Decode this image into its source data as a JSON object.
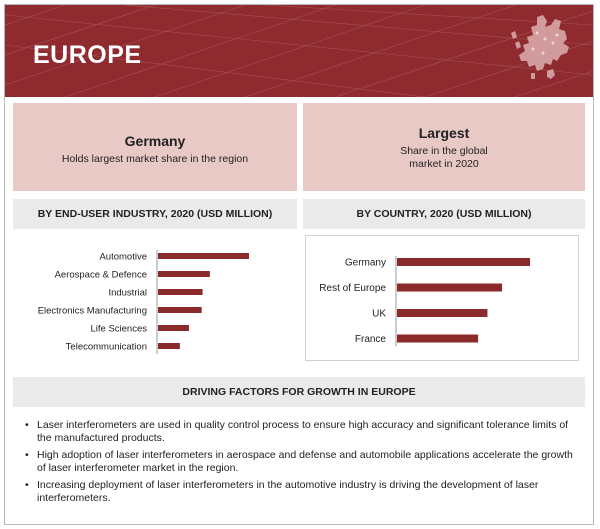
{
  "header": {
    "title": "EUROPE"
  },
  "highlights": [
    {
      "title": "Germany",
      "subtitle": "Holds largest market share in the region"
    },
    {
      "title": "Largest",
      "subtitle": "Share in the global market in 2020"
    }
  ],
  "sections": {
    "left_heading": "BY END-USER INDUSTRY, 2020 (USD MILLION)",
    "right_heading": "BY COUNTRY, 2020 (USD MILLION)",
    "drivers_heading": "DRIVING FACTORS FOR GROWTH IN EUROPE"
  },
  "drivers": [
    "Laser interferometers are used in quality control process to ensure high accuracy and significant tolerance limits of the manufactured products.",
    "High adoption of laser interferometers in aerospace and defense and automobile applications accelerate the growth of laser interferometer market in the region.",
    "Increasing deployment of laser interferometers in the automotive industry is driving the development of laser interferometers."
  ],
  "colors": {
    "brand": "#8f2a2f",
    "bar": "#8a2a2a",
    "card": "#e8c9c6",
    "band": "#eaeaea"
  },
  "icons": {
    "region_map": "europe-map-icon",
    "bullet": "bullet-icon"
  },
  "chart_data": [
    {
      "type": "bar",
      "orientation": "horizontal",
      "title": "BY END-USER INDUSTRY, 2020 (USD MILLION)",
      "categories": [
        "Automotive",
        "Aerospace & Defence",
        "Industrial",
        "Electronics Manufacturing",
        "Life Sciences",
        "Telecommunication"
      ],
      "values": [
        100,
        57,
        49,
        48,
        34,
        24
      ],
      "grid": false,
      "legend": "none"
    },
    {
      "type": "bar",
      "orientation": "horizontal",
      "title": "BY COUNTRY, 2020 (USD MILLION)",
      "categories": [
        "Germany",
        "Rest of Europe",
        "UK",
        "France"
      ],
      "values": [
        100,
        79,
        68,
        61
      ],
      "grid": false,
      "legend": "none"
    }
  ]
}
